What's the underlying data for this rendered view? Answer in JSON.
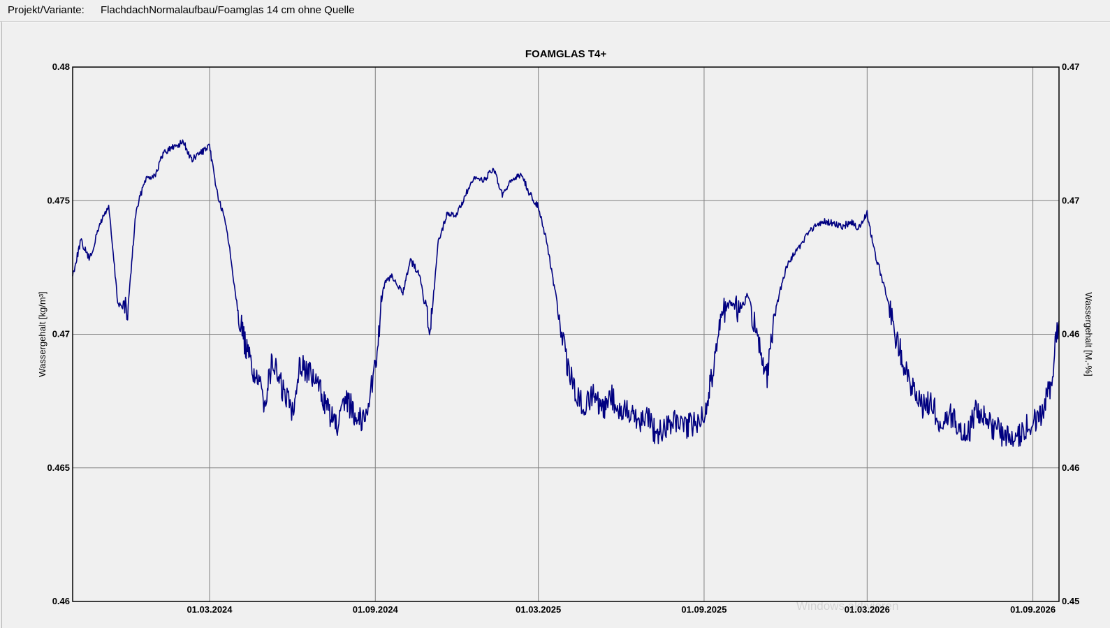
{
  "header": {
    "label": "Projekt/Variante:",
    "value": "FlachdachNormalaufbau/Foamglas 14 cm ohne Quelle"
  },
  "watermark": "Windows aktivieren",
  "colors": {
    "series": "#000080",
    "grid": "#808080",
    "background": "#f0f0f0"
  },
  "chart_data": {
    "type": "line",
    "title": "FOAMGLAS T4+",
    "ylabel": "Wassergehalt [kg/m³]",
    "y2label": "Wassergehalt [M.-%]",
    "ylim": [
      0.46,
      0.48
    ],
    "y_ticks": [
      "0.48",
      "0.475",
      "0.47",
      "0.465",
      "0.46"
    ],
    "y2_ticks": [
      "0.47",
      "0.47",
      "0.46",
      "0.46",
      "0.45"
    ],
    "xlim": [
      "2023-10-01",
      "2026-09-30"
    ],
    "x_ticks": [
      {
        "label": "01.03.2024",
        "date": "2024-03-01"
      },
      {
        "label": "01.09.2024",
        "date": "2024-09-01"
      },
      {
        "label": "01.03.2025",
        "date": "2025-03-01"
      },
      {
        "label": "01.09.2025",
        "date": "2025-09-01"
      },
      {
        "label": "01.03.2026",
        "date": "2026-03-01"
      },
      {
        "label": "01.09.2026",
        "date": "2026-09-01"
      }
    ],
    "grid": true,
    "series": [
      {
        "x": [
          "2023-10-01",
          "2023-10-10",
          "2023-10-20",
          "2023-11-01",
          "2023-11-10",
          "2023-11-20",
          "2023-12-01",
          "2023-12-10",
          "2023-12-20",
          "2024-01-01",
          "2024-01-10",
          "2024-01-20",
          "2024-02-01",
          "2024-02-10",
          "2024-02-20",
          "2024-03-01",
          "2024-03-10",
          "2024-03-20",
          "2024-04-01",
          "2024-04-10",
          "2024-04-20",
          "2024-05-01",
          "2024-05-10",
          "2024-05-20",
          "2024-06-01",
          "2024-06-10",
          "2024-06-20",
          "2024-07-01",
          "2024-07-10",
          "2024-07-20",
          "2024-08-01",
          "2024-08-10",
          "2024-08-20",
          "2024-09-01",
          "2024-09-10",
          "2024-09-20",
          "2024-10-01",
          "2024-10-10",
          "2024-10-20",
          "2024-11-01",
          "2024-11-10",
          "2024-11-20",
          "2024-12-01",
          "2024-12-10",
          "2024-12-20",
          "2025-01-01",
          "2025-01-10",
          "2025-01-20",
          "2025-02-01",
          "2025-02-10",
          "2025-02-20",
          "2025-03-01",
          "2025-03-10",
          "2025-03-20",
          "2025-04-01",
          "2025-04-10",
          "2025-04-20",
          "2025-05-01",
          "2025-05-10",
          "2025-05-20",
          "2025-06-01",
          "2025-06-10",
          "2025-06-20",
          "2025-07-01",
          "2025-07-10",
          "2025-07-20",
          "2025-08-01",
          "2025-08-10",
          "2025-08-20",
          "2025-09-01",
          "2025-09-10",
          "2025-09-20",
          "2025-10-01",
          "2025-10-10",
          "2025-10-20",
          "2025-11-01",
          "2025-11-10",
          "2025-11-20",
          "2025-12-01",
          "2025-12-10",
          "2025-12-20",
          "2026-01-01",
          "2026-01-10",
          "2026-01-20",
          "2026-02-01",
          "2026-02-10",
          "2026-02-20",
          "2026-03-01",
          "2026-03-10",
          "2026-03-20",
          "2026-04-01",
          "2026-04-10",
          "2026-04-20",
          "2026-05-01",
          "2026-05-10",
          "2026-05-20",
          "2026-06-01",
          "2026-06-10",
          "2026-06-20",
          "2026-07-01",
          "2026-07-10",
          "2026-07-20",
          "2026-08-01",
          "2026-08-10",
          "2026-08-20",
          "2026-09-01",
          "2026-09-10",
          "2026-09-20",
          "2026-09-30"
        ],
        "y": [
          0.4722,
          0.4735,
          0.4728,
          0.4742,
          0.4748,
          0.4712,
          0.4708,
          0.4745,
          0.4758,
          0.476,
          0.4768,
          0.477,
          0.4772,
          0.4765,
          0.4768,
          0.477,
          0.4752,
          0.474,
          0.471,
          0.4695,
          0.4685,
          0.4675,
          0.469,
          0.468,
          0.4672,
          0.469,
          0.4685,
          0.468,
          0.4672,
          0.4665,
          0.4675,
          0.467,
          0.4668,
          0.4688,
          0.4718,
          0.4722,
          0.4715,
          0.4728,
          0.4722,
          0.47,
          0.4735,
          0.4745,
          0.4745,
          0.4752,
          0.4758,
          0.4758,
          0.4762,
          0.4752,
          0.4758,
          0.476,
          0.4752,
          0.4748,
          0.4735,
          0.4715,
          0.469,
          0.468,
          0.4672,
          0.4678,
          0.467,
          0.4678,
          0.467,
          0.4672,
          0.4668,
          0.467,
          0.4662,
          0.4665,
          0.4668,
          0.4664,
          0.4667,
          0.467,
          0.4685,
          0.4708,
          0.4712,
          0.4708,
          0.4715,
          0.4695,
          0.4685,
          0.471,
          0.4725,
          0.473,
          0.4735,
          0.474,
          0.4742,
          0.4742,
          0.474,
          0.4742,
          0.474,
          0.4745,
          0.473,
          0.4718,
          0.47,
          0.469,
          0.468,
          0.4672,
          0.4675,
          0.4668,
          0.467,
          0.4665,
          0.4662,
          0.4672,
          0.4668,
          0.4665,
          0.4662,
          0.466,
          0.4664,
          0.4667,
          0.467,
          0.468,
          0.4705
        ]
      }
    ]
  }
}
